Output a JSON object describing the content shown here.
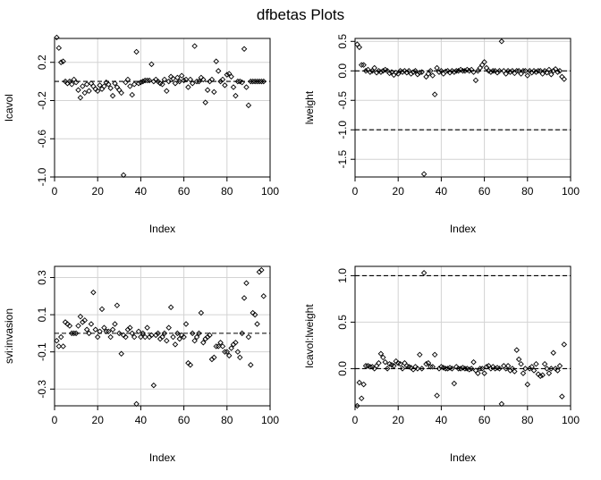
{
  "figure": {
    "title": "dfbetas Plots"
  },
  "chart_data": [
    {
      "type": "scatter",
      "xlabel": "Index",
      "ylabel": "lcavol",
      "xlim": [
        0,
        100
      ],
      "ylim": [
        -1.0,
        0.45
      ],
      "xticks": [
        0,
        20,
        40,
        60,
        80,
        100
      ],
      "yticks": [
        -1.0,
        -0.6,
        -0.2,
        0.2
      ],
      "ytick_labels": [
        "-1.0",
        "-0.6",
        "-0.2",
        "0.2"
      ],
      "grid": true,
      "ref_lines": [
        0.0,
        -1.0
      ],
      "x": [
        1,
        2,
        3,
        4,
        5,
        6,
        7,
        8,
        9,
        10,
        11,
        12,
        13,
        14,
        15,
        16,
        17,
        18,
        19,
        20,
        21,
        22,
        23,
        24,
        25,
        26,
        27,
        28,
        29,
        30,
        31,
        32,
        33,
        34,
        35,
        36,
        37,
        38,
        39,
        40,
        41,
        42,
        43,
        44,
        45,
        46,
        47,
        48,
        49,
        50,
        51,
        52,
        53,
        54,
        55,
        56,
        57,
        58,
        59,
        60,
        61,
        62,
        63,
        64,
        65,
        66,
        67,
        68,
        69,
        70,
        71,
        72,
        73,
        74,
        75,
        76,
        77,
        78,
        79,
        80,
        81,
        82,
        83,
        84,
        85,
        86,
        87,
        88,
        89,
        90,
        91,
        92,
        93,
        94,
        95,
        96,
        97
      ],
      "y": [
        0.46,
        0.35,
        0.2,
        0.21,
        0.0,
        -0.02,
        0.0,
        -0.03,
        0.02,
        -0.01,
        -0.09,
        -0.17,
        -0.05,
        -0.12,
        -0.03,
        -0.1,
        -0.02,
        -0.05,
        -0.08,
        -0.1,
        -0.04,
        -0.08,
        -0.05,
        -0.01,
        -0.03,
        -0.07,
        -0.15,
        -0.02,
        -0.06,
        -0.09,
        -0.12,
        -0.98,
        -0.01,
        0.02,
        -0.05,
        -0.14,
        -0.03,
        0.31,
        -0.02,
        -0.01,
        0.0,
        0.01,
        0.01,
        0.01,
        0.18,
        0.0,
        0.02,
        0.0,
        -0.02,
        -0.03,
        0.02,
        -0.1,
        0.0,
        0.05,
        0.03,
        -0.02,
        0.04,
        0.0,
        0.06,
        0.01,
        0.02,
        -0.06,
        0.02,
        -0.02,
        0.37,
        0.0,
        0.0,
        0.04,
        0.02,
        -0.22,
        -0.09,
        0.0,
        0.02,
        -0.11,
        0.21,
        0.11,
        0.0,
        0.02,
        -0.04,
        0.07,
        0.08,
        0.05,
        -0.06,
        -0.15,
        0.0,
        0.0,
        -0.01,
        0.34,
        -0.06,
        -0.25,
        0.0,
        0.0,
        0.0,
        0.0,
        0.0,
        0.0,
        0.0
      ]
    },
    {
      "type": "scatter",
      "xlabel": "Index",
      "ylabel": "lweight",
      "xlim": [
        0,
        100
      ],
      "ylim": [
        -1.8,
        0.55
      ],
      "xticks": [
        0,
        20,
        40,
        60,
        80,
        100
      ],
      "yticks": [
        -1.5,
        -1.0,
        -0.5,
        0.0,
        0.5
      ],
      "ytick_labels": [
        "-1.5",
        "-1.0",
        "-0.5",
        "0.0",
        "0.5"
      ],
      "grid": true,
      "ref_lines": [
        0.0,
        -1.0
      ],
      "x": [
        1,
        2,
        3,
        4,
        5,
        6,
        7,
        8,
        9,
        10,
        11,
        12,
        13,
        14,
        15,
        16,
        17,
        18,
        19,
        20,
        21,
        22,
        23,
        24,
        25,
        26,
        27,
        28,
        29,
        30,
        31,
        32,
        33,
        34,
        35,
        36,
        37,
        38,
        39,
        40,
        41,
        42,
        43,
        44,
        45,
        46,
        47,
        48,
        49,
        50,
        51,
        52,
        53,
        54,
        55,
        56,
        57,
        58,
        59,
        60,
        61,
        62,
        63,
        64,
        65,
        66,
        67,
        68,
        69,
        70,
        71,
        72,
        73,
        74,
        75,
        76,
        77,
        78,
        79,
        80,
        81,
        82,
        83,
        84,
        85,
        86,
        87,
        88,
        89,
        90,
        91,
        92,
        93,
        94,
        95,
        96,
        97
      ],
      "y": [
        0.45,
        0.4,
        0.1,
        0.1,
        0.0,
        0.02,
        -0.02,
        0.0,
        0.05,
        -0.03,
        0.0,
        -0.02,
        0.0,
        0.02,
        0.0,
        -0.04,
        -0.02,
        -0.07,
        -0.03,
        -0.05,
        0.0,
        -0.02,
        0.0,
        -0.03,
        0.0,
        -0.05,
        -0.02,
        0.0,
        -0.06,
        -0.03,
        -0.02,
        -1.75,
        -0.1,
        -0.05,
        0.0,
        -0.08,
        -0.4,
        0.05,
        -0.02,
        0.0,
        -0.05,
        -0.01,
        0.0,
        -0.03,
        0.0,
        -0.02,
        0.0,
        0.0,
        0.02,
        0.0,
        0.0,
        0.02,
        0.0,
        0.02,
        -0.02,
        -0.16,
        0.0,
        0.05,
        0.1,
        0.15,
        0.05,
        0.0,
        -0.02,
        0.0,
        0.0,
        -0.03,
        0.0,
        0.5,
        0.0,
        -0.05,
        0.0,
        -0.02,
        0.0,
        -0.04,
        0.0,
        0.0,
        -0.05,
        0.0,
        0.0,
        -0.08,
        0.0,
        -0.03,
        0.0,
        -0.02,
        0.0,
        0.0,
        -0.05,
        0.0,
        -0.03,
        0.02,
        -0.06,
        0.0,
        0.03,
        -0.02,
        0.0,
        -0.1,
        -0.14
      ]
    },
    {
      "type": "scatter",
      "xlabel": "Index",
      "ylabel": "svi:invasion",
      "xlim": [
        0,
        100
      ],
      "ylim": [
        -0.39,
        0.36
      ],
      "xticks": [
        0,
        20,
        40,
        60,
        80,
        100
      ],
      "yticks": [
        -0.3,
        -0.1,
        0.1,
        0.3
      ],
      "ytick_labels": [
        "-0.3",
        "-0.1",
        "0.1",
        "0.3"
      ],
      "grid": true,
      "ref_lines": [
        0.0
      ],
      "x": [
        1,
        2,
        3,
        4,
        5,
        6,
        7,
        8,
        9,
        10,
        11,
        12,
        13,
        14,
        15,
        16,
        17,
        18,
        19,
        20,
        21,
        22,
        23,
        24,
        25,
        26,
        27,
        28,
        29,
        30,
        31,
        32,
        33,
        34,
        35,
        36,
        37,
        38,
        39,
        40,
        41,
        42,
        43,
        44,
        45,
        46,
        47,
        48,
        49,
        50,
        51,
        52,
        53,
        54,
        55,
        56,
        57,
        58,
        59,
        60,
        61,
        62,
        63,
        64,
        65,
        66,
        67,
        68,
        69,
        70,
        71,
        72,
        73,
        74,
        75,
        76,
        77,
        78,
        79,
        80,
        81,
        82,
        83,
        84,
        85,
        86,
        87,
        88,
        89,
        90,
        91,
        92,
        93,
        94,
        95,
        96,
        97
      ],
      "y": [
        -0.04,
        -0.07,
        -0.02,
        -0.07,
        0.06,
        0.05,
        0.04,
        0.0,
        0.0,
        0.0,
        0.04,
        0.09,
        0.06,
        0.07,
        0.02,
        0.0,
        0.05,
        0.22,
        0.02,
        -0.02,
        0.01,
        0.13,
        0.03,
        0.01,
        0.01,
        -0.02,
        0.02,
        0.05,
        0.15,
        0.0,
        -0.11,
        -0.01,
        -0.02,
        0.02,
        0.03,
        0.0,
        -0.02,
        -0.38,
        0.01,
        -0.02,
        0.0,
        -0.02,
        0.03,
        -0.02,
        -0.01,
        -0.28,
        -0.01,
        0.0,
        -0.03,
        -0.02,
        0.0,
        -0.04,
        0.03,
        0.14,
        -0.02,
        -0.06,
        0.0,
        -0.03,
        -0.01,
        -0.02,
        0.05,
        -0.16,
        -0.17,
        0.0,
        -0.04,
        -0.02,
        0.0,
        0.11,
        -0.05,
        -0.03,
        -0.02,
        -0.01,
        -0.14,
        -0.13,
        -0.07,
        -0.07,
        -0.05,
        -0.07,
        -0.1,
        -0.1,
        -0.12,
        -0.08,
        -0.06,
        -0.05,
        -0.1,
        -0.13,
        0.0,
        0.19,
        0.27,
        -0.02,
        -0.17,
        0.11,
        0.1,
        0.05,
        0.33,
        0.34,
        0.2
      ]
    },
    {
      "type": "scatter",
      "xlabel": "Index",
      "ylabel": "lcavol:lweight",
      "xlim": [
        0,
        100
      ],
      "ylim": [
        -0.4,
        1.1
      ],
      "xticks": [
        0,
        20,
        40,
        60,
        80,
        100
      ],
      "yticks": [
        0.0,
        0.5,
        1.0
      ],
      "ytick_labels": [
        "0.0",
        "0.5",
        "1.0"
      ],
      "grid": true,
      "ref_lines": [
        0.0,
        1.0
      ],
      "x": [
        1,
        2,
        3,
        4,
        5,
        6,
        7,
        8,
        9,
        10,
        11,
        12,
        13,
        14,
        15,
        16,
        17,
        18,
        19,
        20,
        21,
        22,
        23,
        24,
        25,
        26,
        27,
        28,
        29,
        30,
        31,
        32,
        33,
        34,
        35,
        36,
        37,
        38,
        39,
        40,
        41,
        42,
        43,
        44,
        45,
        46,
        47,
        48,
        49,
        50,
        51,
        52,
        53,
        54,
        55,
        56,
        57,
        58,
        59,
        60,
        61,
        62,
        63,
        64,
        65,
        66,
        67,
        68,
        69,
        70,
        71,
        72,
        73,
        74,
        75,
        76,
        77,
        78,
        79,
        80,
        81,
        82,
        83,
        84,
        85,
        86,
        87,
        88,
        89,
        90,
        91,
        92,
        93,
        94,
        95,
        96,
        97
      ],
      "y": [
        -0.4,
        -0.15,
        -0.32,
        -0.17,
        0.03,
        0.03,
        0.02,
        0.02,
        0.0,
        0.03,
        0.06,
        0.16,
        0.12,
        0.07,
        0.0,
        0.05,
        0.04,
        0.03,
        0.08,
        0.06,
        0.05,
        0.0,
        0.06,
        0.03,
        0.02,
        0.01,
        -0.01,
        0.02,
        0.0,
        0.15,
        0.0,
        1.03,
        0.05,
        0.06,
        0.02,
        0.02,
        0.15,
        -0.29,
        0.0,
        0.02,
        0.01,
        0.0,
        0.0,
        0.01,
        0.0,
        -0.16,
        0.02,
        0.0,
        0.0,
        0.01,
        0.0,
        0.0,
        -0.01,
        0.0,
        0.07,
        -0.02,
        -0.05,
        0.0,
        0.0,
        -0.05,
        0.02,
        0.03,
        0.0,
        0.02,
        0.0,
        0.01,
        0.0,
        -0.38,
        0.03,
        0.0,
        0.03,
        -0.02,
        0.0,
        -0.03,
        0.2,
        0.1,
        0.05,
        -0.05,
        0.0,
        -0.17,
        0.0,
        0.02,
        -0.02,
        0.05,
        -0.06,
        -0.08,
        -0.07,
        0.05,
        0.0,
        -0.05,
        0.0,
        0.17,
        0.0,
        -0.02,
        0.03,
        -0.3,
        0.26
      ]
    }
  ]
}
